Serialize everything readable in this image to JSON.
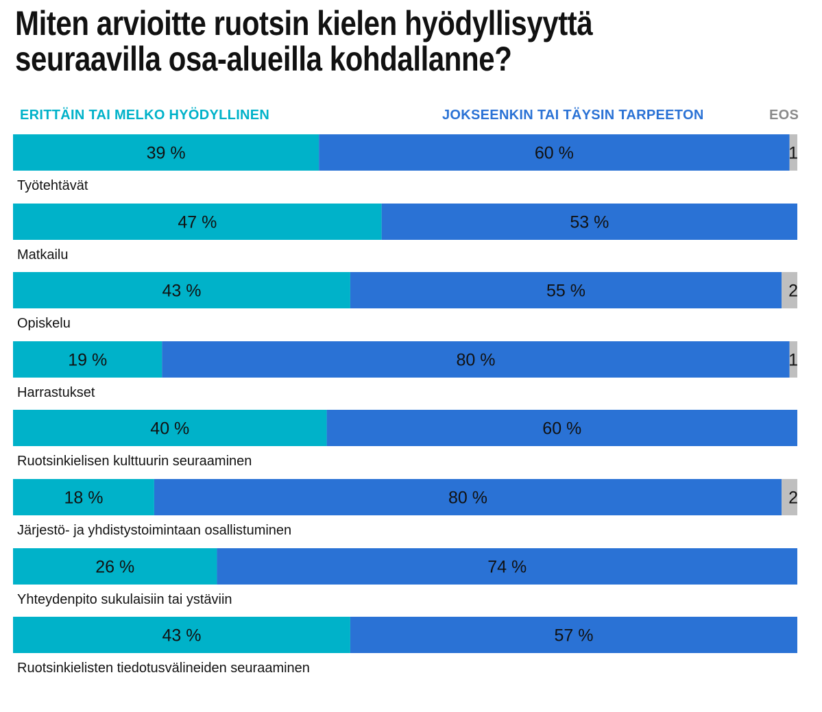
{
  "chart_data": {
    "type": "bar",
    "orientation": "horizontal",
    "stacked": true,
    "title": "Miten arvioitte ruotsin kielen hyödyllisyyttä seuraavilla osa-alueilla kohdallanne?",
    "categories": [
      "Työtehtävät",
      "Matkailu",
      "Opiskelu",
      "Harrastukset",
      "Ruotsinkielisen kulttuurin seuraaminen",
      "Järjestö- ja yhdistystoimintaan osallistuminen",
      "Yhteydenpito sukulaisiin tai ystäviin",
      "Ruotsinkielisten tiedotusvälineiden seuraaminen"
    ],
    "series": [
      {
        "name": "ERITTÄIN TAI MELKO HYÖDYLLINEN",
        "color": "#00b2c9",
        "values": [
          39,
          47,
          43,
          19,
          40,
          18,
          26,
          43
        ],
        "labels": [
          "39 %",
          "47 %",
          "43 %",
          "19 %",
          "40 %",
          "18 %",
          "26 %",
          "43 %"
        ]
      },
      {
        "name": "JOKSEENKIN  TAI TÄYSIN TARPEETON",
        "color": "#2a72d5",
        "values": [
          60,
          53,
          55,
          80,
          60,
          80,
          74,
          57
        ],
        "labels": [
          "60 %",
          "53 %",
          "55 %",
          "80 %",
          "60 %",
          "80 %",
          "74 %",
          "57 %"
        ]
      },
      {
        "name": "EOS",
        "color": "#bfbfbf",
        "values": [
          1,
          0,
          2,
          1,
          0,
          2,
          0,
          0
        ],
        "labels": [
          "1",
          "",
          "2",
          "1",
          "",
          "2",
          "",
          ""
        ]
      }
    ],
    "xlim": [
      0,
      100
    ],
    "units": "%"
  }
}
